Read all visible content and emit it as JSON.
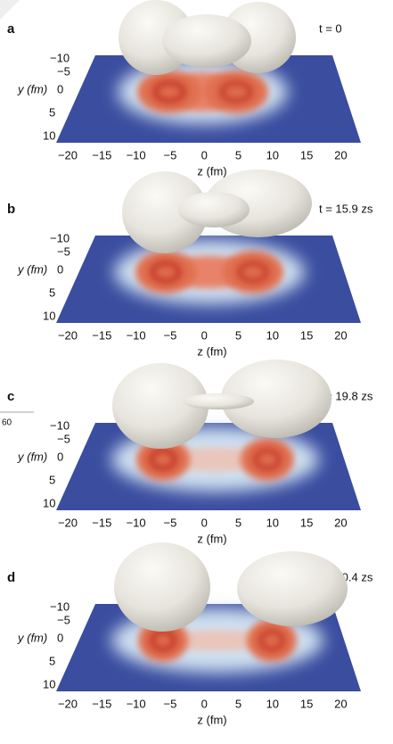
{
  "side_marker": "60",
  "panels": [
    {
      "label": "a",
      "time": "t = 0",
      "x_label": "z (fm)",
      "y_label": "y (fm)",
      "x_ticks": [
        "−20",
        "−15",
        "−10",
        "−5",
        "0",
        "5",
        "10",
        "15",
        "20"
      ],
      "y_ticks": [
        "−10",
        "−5",
        "0",
        "5",
        "10"
      ]
    },
    {
      "label": "b",
      "time": "t = 15.9 zs",
      "x_label": "z (fm)",
      "y_label": "y (fm)",
      "x_ticks": [
        "−20",
        "−15",
        "−10",
        "−5",
        "0",
        "5",
        "10",
        "15",
        "20"
      ],
      "y_ticks": [
        "−10",
        "−5",
        "0",
        "5",
        "10"
      ]
    },
    {
      "label": "c",
      "time": "t = 19.8 zs",
      "x_label": "z (fm)",
      "y_label": "y (fm)",
      "x_ticks": [
        "−20",
        "−15",
        "−10",
        "−5",
        "0",
        "5",
        "10",
        "15",
        "20"
      ],
      "y_ticks": [
        "−10",
        "−5",
        "0",
        "5",
        "10"
      ]
    },
    {
      "label": "d",
      "time": "t = 20.4 zs",
      "x_label": "z (fm)",
      "y_label": "y (fm)",
      "x_ticks": [
        "−20",
        "−15",
        "−10",
        "−5",
        "0",
        "5",
        "10",
        "15",
        "20"
      ],
      "y_ticks": [
        "−10",
        "−5",
        "0",
        "5",
        "10"
      ]
    }
  ]
}
